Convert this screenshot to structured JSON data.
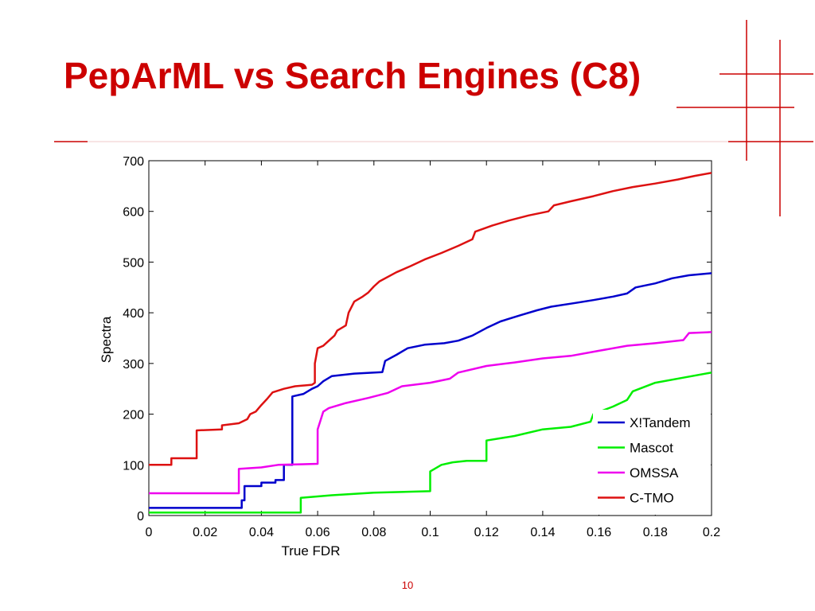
{
  "slide": {
    "title": "PepArML vs Search Engines (C8)",
    "page_number": "10",
    "accent_color": "#cc0000"
  },
  "chart_data": {
    "type": "line",
    "title": "",
    "xlabel": "True FDR",
    "ylabel": "Spectra",
    "xlim": [
      0,
      0.2
    ],
    "ylim": [
      0,
      700
    ],
    "x_ticks": [
      "0",
      "0.02",
      "0.04",
      "0.06",
      "0.08",
      "0.1",
      "0.12",
      "0.14",
      "0.16",
      "0.18",
      "0.2"
    ],
    "y_ticks": [
      "0",
      "100",
      "200",
      "300",
      "400",
      "500",
      "600",
      "700"
    ],
    "grid": false,
    "legend_position": "bottom-right",
    "series": [
      {
        "name": "X!Tandem",
        "color": "#0000cc",
        "points": [
          [
            0,
            15
          ],
          [
            0.033,
            15
          ],
          [
            0.033,
            30
          ],
          [
            0.034,
            30
          ],
          [
            0.034,
            58
          ],
          [
            0.04,
            58
          ],
          [
            0.04,
            65
          ],
          [
            0.045,
            65
          ],
          [
            0.045,
            70
          ],
          [
            0.048,
            70
          ],
          [
            0.048,
            100
          ],
          [
            0.051,
            100
          ],
          [
            0.051,
            235
          ],
          [
            0.055,
            240
          ],
          [
            0.058,
            250
          ],
          [
            0.06,
            255
          ],
          [
            0.062,
            265
          ],
          [
            0.065,
            275
          ],
          [
            0.073,
            280
          ],
          [
            0.083,
            283
          ],
          [
            0.084,
            305
          ],
          [
            0.088,
            317
          ],
          [
            0.092,
            330
          ],
          [
            0.098,
            337
          ],
          [
            0.105,
            340
          ],
          [
            0.11,
            345
          ],
          [
            0.115,
            355
          ],
          [
            0.12,
            370
          ],
          [
            0.125,
            383
          ],
          [
            0.132,
            395
          ],
          [
            0.138,
            405
          ],
          [
            0.143,
            412
          ],
          [
            0.15,
            418
          ],
          [
            0.158,
            425
          ],
          [
            0.165,
            432
          ],
          [
            0.17,
            438
          ],
          [
            0.173,
            450
          ],
          [
            0.18,
            458
          ],
          [
            0.186,
            468
          ],
          [
            0.192,
            474
          ],
          [
            0.2,
            478
          ]
        ]
      },
      {
        "name": "Mascot",
        "color": "#00ee00",
        "points": [
          [
            0,
            6
          ],
          [
            0.054,
            6
          ],
          [
            0.054,
            35
          ],
          [
            0.065,
            40
          ],
          [
            0.08,
            45
          ],
          [
            0.1,
            48
          ],
          [
            0.1,
            87
          ],
          [
            0.104,
            100
          ],
          [
            0.108,
            105
          ],
          [
            0.113,
            108
          ],
          [
            0.12,
            108
          ],
          [
            0.12,
            148
          ],
          [
            0.13,
            157
          ],
          [
            0.14,
            170
          ],
          [
            0.15,
            175
          ],
          [
            0.157,
            185
          ],
          [
            0.158,
            200
          ],
          [
            0.165,
            215
          ],
          [
            0.17,
            228
          ],
          [
            0.172,
            245
          ],
          [
            0.18,
            262
          ],
          [
            0.19,
            272
          ],
          [
            0.2,
            282
          ]
        ]
      },
      {
        "name": "OMSSA",
        "color": "#ee00ee",
        "points": [
          [
            0,
            44
          ],
          [
            0.032,
            44
          ],
          [
            0.032,
            92
          ],
          [
            0.04,
            95
          ],
          [
            0.046,
            100
          ],
          [
            0.06,
            102
          ],
          [
            0.06,
            170
          ],
          [
            0.062,
            205
          ],
          [
            0.064,
            212
          ],
          [
            0.07,
            222
          ],
          [
            0.078,
            232
          ],
          [
            0.085,
            242
          ],
          [
            0.09,
            255
          ],
          [
            0.1,
            262
          ],
          [
            0.107,
            270
          ],
          [
            0.11,
            282
          ],
          [
            0.12,
            295
          ],
          [
            0.13,
            302
          ],
          [
            0.14,
            310
          ],
          [
            0.15,
            315
          ],
          [
            0.16,
            325
          ],
          [
            0.17,
            335
          ],
          [
            0.18,
            340
          ],
          [
            0.19,
            346
          ],
          [
            0.192,
            360
          ],
          [
            0.2,
            362
          ]
        ]
      },
      {
        "name": "C-TMO",
        "color": "#dd1111",
        "points": [
          [
            0,
            100
          ],
          [
            0.008,
            100
          ],
          [
            0.008,
            113
          ],
          [
            0.017,
            113
          ],
          [
            0.017,
            168
          ],
          [
            0.026,
            170
          ],
          [
            0.026,
            178
          ],
          [
            0.032,
            182
          ],
          [
            0.035,
            190
          ],
          [
            0.036,
            200
          ],
          [
            0.038,
            205
          ],
          [
            0.04,
            218
          ],
          [
            0.042,
            230
          ],
          [
            0.044,
            243
          ],
          [
            0.048,
            250
          ],
          [
            0.052,
            255
          ],
          [
            0.058,
            258
          ],
          [
            0.059,
            262
          ],
          [
            0.059,
            300
          ],
          [
            0.06,
            330
          ],
          [
            0.062,
            335
          ],
          [
            0.064,
            345
          ],
          [
            0.066,
            355
          ],
          [
            0.067,
            365
          ],
          [
            0.07,
            375
          ],
          [
            0.071,
            400
          ],
          [
            0.073,
            422
          ],
          [
            0.076,
            432
          ],
          [
            0.078,
            440
          ],
          [
            0.08,
            452
          ],
          [
            0.082,
            462
          ],
          [
            0.088,
            480
          ],
          [
            0.093,
            492
          ],
          [
            0.098,
            505
          ],
          [
            0.104,
            518
          ],
          [
            0.11,
            532
          ],
          [
            0.115,
            545
          ],
          [
            0.116,
            560
          ],
          [
            0.122,
            572
          ],
          [
            0.128,
            582
          ],
          [
            0.135,
            592
          ],
          [
            0.142,
            600
          ],
          [
            0.144,
            612
          ],
          [
            0.15,
            620
          ],
          [
            0.158,
            630
          ],
          [
            0.165,
            640
          ],
          [
            0.172,
            648
          ],
          [
            0.18,
            655
          ],
          [
            0.188,
            663
          ],
          [
            0.194,
            670
          ],
          [
            0.2,
            676
          ]
        ]
      }
    ]
  }
}
